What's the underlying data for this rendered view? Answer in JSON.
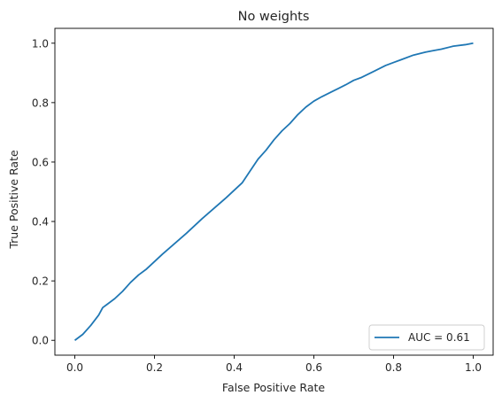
{
  "chart_data": {
    "type": "line",
    "title": "No weights",
    "xlabel": "False Positive Rate",
    "ylabel": "True Positive Rate",
    "xlim": [
      -0.05,
      1.05
    ],
    "ylim": [
      -0.05,
      1.05
    ],
    "xticks": [
      0.0,
      0.2,
      0.4,
      0.6,
      0.8,
      1.0
    ],
    "yticks": [
      0.0,
      0.2,
      0.4,
      0.6,
      0.8,
      1.0
    ],
    "xtick_labels": [
      "0.0",
      "0.2",
      "0.4",
      "0.6",
      "0.8",
      "1.0"
    ],
    "ytick_labels": [
      "0.0",
      "0.2",
      "0.4",
      "0.6",
      "0.8",
      "1.0"
    ],
    "grid": false,
    "legend_position": "lower-right",
    "series": [
      {
        "name": "AUC = 0.61",
        "color": "#1f77b4",
        "x": [
          0.0,
          0.01,
          0.02,
          0.04,
          0.06,
          0.07,
          0.08,
          0.1,
          0.12,
          0.14,
          0.16,
          0.18,
          0.2,
          0.22,
          0.25,
          0.28,
          0.3,
          0.32,
          0.35,
          0.38,
          0.4,
          0.42,
          0.44,
          0.46,
          0.48,
          0.5,
          0.52,
          0.54,
          0.56,
          0.58,
          0.6,
          0.62,
          0.65,
          0.68,
          0.7,
          0.72,
          0.75,
          0.78,
          0.8,
          0.82,
          0.85,
          0.88,
          0.9,
          0.92,
          0.95,
          0.98,
          1.0
        ],
        "y": [
          0.0,
          0.01,
          0.02,
          0.05,
          0.085,
          0.11,
          0.12,
          0.14,
          0.165,
          0.195,
          0.22,
          0.24,
          0.265,
          0.29,
          0.325,
          0.36,
          0.385,
          0.41,
          0.445,
          0.48,
          0.505,
          0.53,
          0.57,
          0.61,
          0.64,
          0.675,
          0.705,
          0.73,
          0.76,
          0.785,
          0.805,
          0.82,
          0.84,
          0.86,
          0.875,
          0.885,
          0.905,
          0.925,
          0.935,
          0.945,
          0.96,
          0.97,
          0.975,
          0.98,
          0.99,
          0.995,
          1.0
        ]
      }
    ]
  }
}
